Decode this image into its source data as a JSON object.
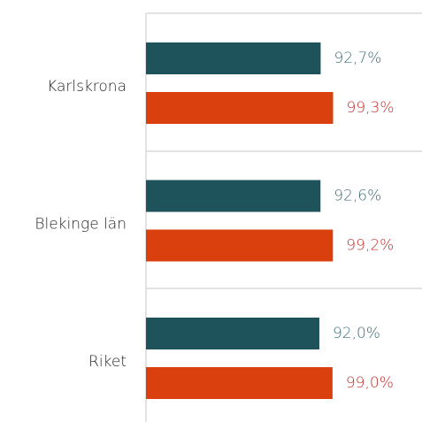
{
  "chart_data": {
    "type": "bar",
    "orientation": "horizontal",
    "categories": [
      "Karlskrona",
      "Blekinge län",
      "Riket"
    ],
    "series": [
      {
        "color": "#1f535c",
        "label_color": "#3f6d76",
        "values": [
          92.7,
          92.6,
          92.0
        ],
        "value_labels": [
          "92,7%",
          "92,6%",
          "92,0%"
        ]
      },
      {
        "color": "#d9400e",
        "label_color": "#c3302b",
        "values": [
          99.3,
          99.2,
          99.0
        ],
        "value_labels": [
          "99,3%",
          "99,2%",
          "99,0%"
        ]
      }
    ],
    "xlim": [
      0,
      100
    ]
  }
}
